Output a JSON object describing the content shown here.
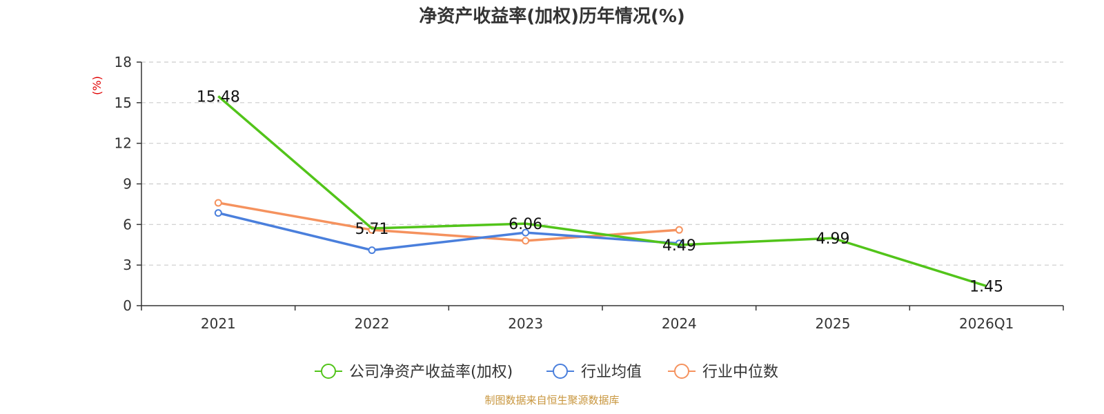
{
  "chart_data": {
    "type": "line",
    "title": "净资产收益率(加权)历年情况(%)",
    "ylabel": "(%)",
    "categories": [
      "2021",
      "2022",
      "2023",
      "2024",
      "2025",
      "2026Q1"
    ],
    "yticks": [
      "0",
      "3",
      "6",
      "9",
      "12",
      "15",
      "18"
    ],
    "ylim": [
      0,
      18
    ],
    "grid": true,
    "legend_position": "bottom-center",
    "series": [
      {
        "name": "公司净资产收益率(加权)",
        "color": "#52c41a",
        "values": [
          15.48,
          5.71,
          6.06,
          4.49,
          4.99,
          1.45
        ],
        "labels": [
          "15.48",
          "5.71",
          "6.06",
          "4.49",
          "4.99",
          "1.45"
        ],
        "markers": false
      },
      {
        "name": "行业均值",
        "color": "#4a7fdc",
        "values": [
          6.85,
          4.1,
          5.4,
          4.6,
          null,
          null
        ],
        "markers": true
      },
      {
        "name": "行业中位数",
        "color": "#f5925e",
        "values": [
          7.6,
          5.6,
          4.8,
          5.6,
          null,
          null
        ],
        "markers": true
      }
    ],
    "source": "制图数据来自恒生聚源数据库"
  }
}
